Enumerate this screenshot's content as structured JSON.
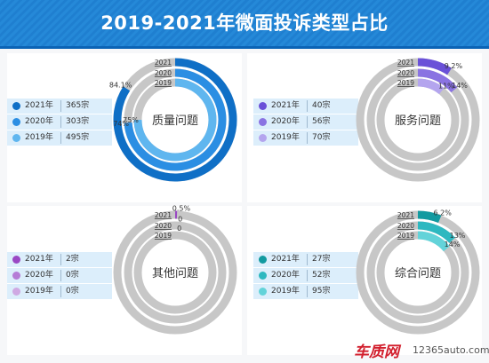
{
  "header": {
    "title": "2019-2021年微面投诉类型占比"
  },
  "footer": {
    "logo": "车质网",
    "site": "12365auto.com"
  },
  "colors": {
    "header_bg": "#2589d8",
    "track": "#c7c7c7",
    "quality": [
      "#0f6fc6",
      "#2b8ee3",
      "#5fb6ef"
    ],
    "service": [
      "#6a51d8",
      "#8a73e2",
      "#b4a5ee"
    ],
    "other": [
      "#9a48c4",
      "#b57cd6",
      "#cfa9e3"
    ],
    "composite": [
      "#129aa0",
      "#2db8c0",
      "#63d3d9"
    ]
  },
  "chart_data": [
    {
      "type": "pie",
      "variant": "concentric-donut",
      "center_label": "质量问题",
      "rings": [
        "2021",
        "2020",
        "2019"
      ],
      "legend": [
        {
          "year": "2021年",
          "count": "365宗"
        },
        {
          "year": "2020年",
          "count": "303宗"
        },
        {
          "year": "2019年",
          "count": "495宗"
        }
      ],
      "values_percent": [
        84.1,
        74,
        75
      ],
      "value_labels": [
        "84.1%",
        "74%",
        "75%"
      ]
    },
    {
      "type": "pie",
      "variant": "concentric-donut",
      "center_label": "服务问题",
      "rings": [
        "2021",
        "2020",
        "2019"
      ],
      "legend": [
        {
          "year": "2021年",
          "count": "40宗"
        },
        {
          "year": "2020年",
          "count": "56宗"
        },
        {
          "year": "2019年",
          "count": "70宗"
        }
      ],
      "values_percent": [
        9.2,
        14,
        11
      ],
      "value_labels": [
        "9.2%",
        "14%",
        "11%"
      ]
    },
    {
      "type": "pie",
      "variant": "concentric-donut",
      "center_label": "其他问题",
      "rings": [
        "2021",
        "2020",
        "2019"
      ],
      "legend": [
        {
          "year": "2021年",
          "count": "2宗"
        },
        {
          "year": "2020年",
          "count": "0宗"
        },
        {
          "year": "2019年",
          "count": "0宗"
        }
      ],
      "values_percent": [
        0.5,
        0,
        0
      ],
      "value_labels": [
        "0.5%",
        "0",
        "0"
      ]
    },
    {
      "type": "pie",
      "variant": "concentric-donut",
      "center_label": "综合问题",
      "rings": [
        "2021",
        "2020",
        "2019"
      ],
      "legend": [
        {
          "year": "2021年",
          "count": "27宗"
        },
        {
          "year": "2020年",
          "count": "52宗"
        },
        {
          "year": "2019年",
          "count": "95宗"
        }
      ],
      "values_percent": [
        6.2,
        13,
        14
      ],
      "value_labels": [
        "6.2%",
        "13%",
        "14%"
      ]
    }
  ]
}
